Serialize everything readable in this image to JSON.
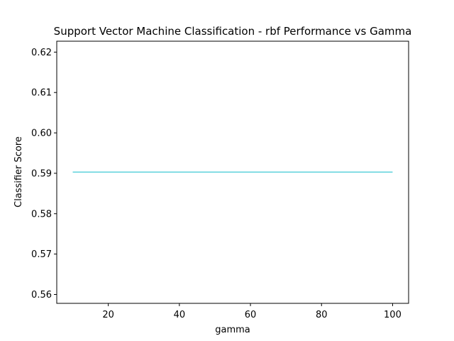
{
  "chart_data": {
    "type": "line",
    "title": "Support Vector Machine Classification - rbf Performance vs Gamma",
    "xlabel": "gamma",
    "ylabel": "Classifier Score",
    "xlim": [
      5.5,
      104.5
    ],
    "ylim": [
      0.5578,
      0.6227
    ],
    "xticks": [
      20,
      40,
      60,
      80,
      100
    ],
    "yticks": [
      0.56,
      0.57,
      0.58,
      0.59,
      0.6,
      0.61,
      0.62
    ],
    "grid": false,
    "series": [
      {
        "name": "rbf",
        "color": "#5fd3dc",
        "x": [
          10,
          100
        ],
        "y": [
          0.5903,
          0.5903
        ]
      }
    ]
  }
}
